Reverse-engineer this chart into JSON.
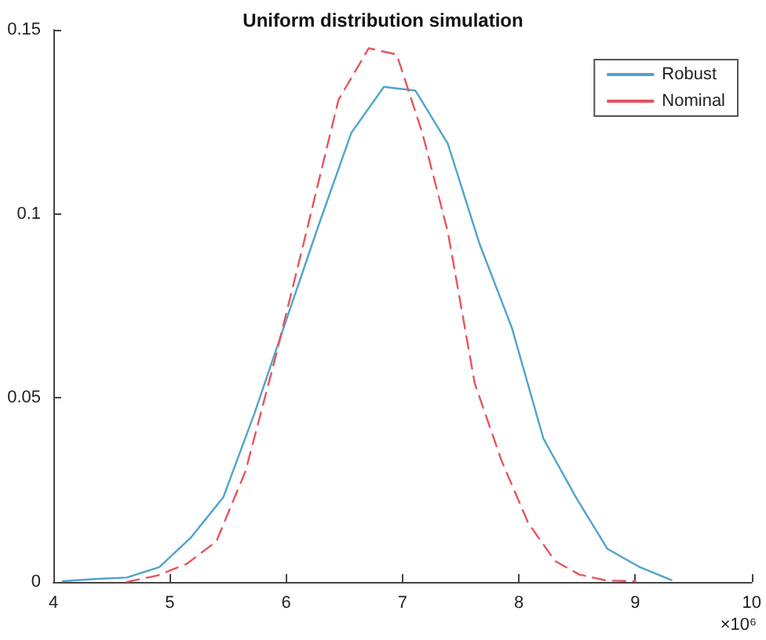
{
  "chart_data": {
    "type": "line",
    "title": "Uniform distribution simulation",
    "annotations": [
      "×10⁶"
    ],
    "xlim": [
      4,
      10
    ],
    "xticks": [
      4,
      5,
      6,
      7,
      8,
      9,
      10
    ],
    "ylim": [
      0,
      0.15
    ],
    "yticks": [
      0,
      0.05,
      0.1,
      0.15
    ],
    "grid": false,
    "legend": "top right",
    "marker": "none",
    "series": [
      {
        "name": "Robust",
        "color": "#4fa3cc",
        "line_style": "solid",
        "x": [
          4.08,
          4.36,
          4.63,
          4.91,
          5.18,
          5.46,
          5.73,
          6.01,
          6.28,
          6.56,
          6.84,
          7.11,
          7.39,
          7.66,
          7.94,
          8.21,
          8.49,
          8.76,
          9.04,
          9.31
        ],
        "values": [
          0.0002,
          0.0008,
          0.0012,
          0.004,
          0.012,
          0.023,
          0.046,
          0.072,
          0.097,
          0.122,
          0.1345,
          0.1335,
          0.119,
          0.092,
          0.069,
          0.039,
          0.023,
          0.009,
          0.004,
          0.0005
        ]
      },
      {
        "name": "Nominal",
        "color": "#e8545e",
        "line_style": "dashed",
        "x": [
          4.63,
          4.9,
          5.15,
          5.4,
          5.65,
          5.9,
          6.15,
          6.45,
          6.71,
          6.95,
          7.17,
          7.39,
          7.62,
          7.85,
          8.08,
          8.31,
          8.52,
          8.75,
          9.0
        ],
        "values": [
          0,
          0.0018,
          0.005,
          0.011,
          0.03,
          0.06,
          0.092,
          0.131,
          0.145,
          0.1433,
          0.122,
          0.095,
          0.054,
          0.033,
          0.016,
          0.0057,
          0.002,
          0.0004,
          0.0002
        ]
      }
    ]
  }
}
